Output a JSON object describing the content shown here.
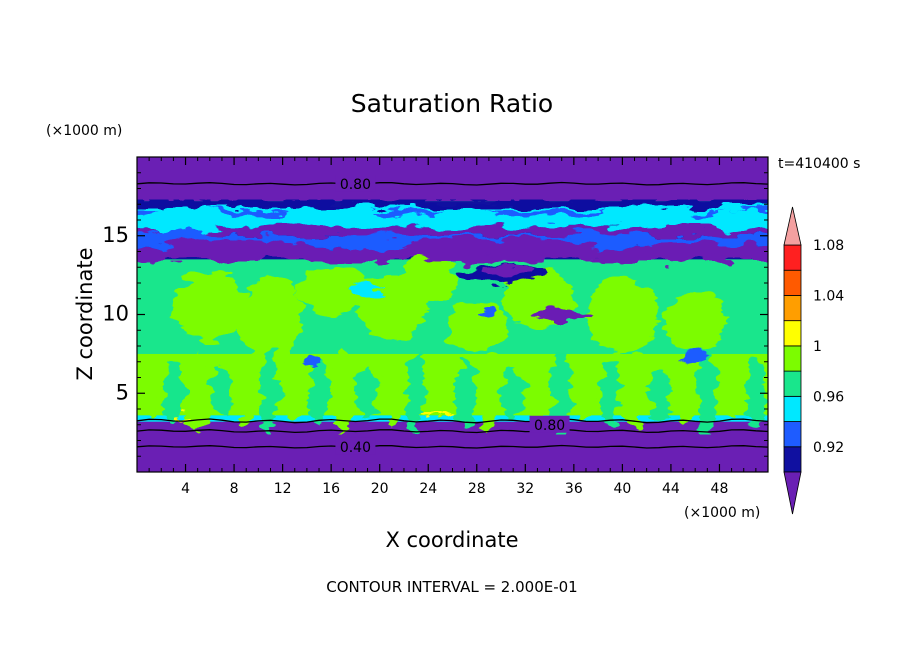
{
  "chart_data": {
    "type": "heatmap",
    "title": "Saturation Ratio",
    "xlabel": "X coordinate",
    "ylabel": "Z coordinate",
    "x_unit": "(×1000 m)",
    "y_unit": "(×1000 m)",
    "time_label": "t=410400 s",
    "footer": "CONTOUR INTERVAL = 2.000E-01",
    "xlim": [
      0,
      52
    ],
    "ylim": [
      0,
      20
    ],
    "x_ticks": [
      "4",
      "8",
      "12",
      "16",
      "20",
      "24",
      "28",
      "32",
      "36",
      "40",
      "44",
      "48"
    ],
    "y_ticks": [
      "5",
      "10",
      "15"
    ],
    "colorbar": {
      "levels": [
        "0.92",
        "0.96",
        "1",
        "1.04",
        "1.08"
      ],
      "colors": [
        "#6a1fb4",
        "#1010a0",
        "#1e5cff",
        "#00e8ff",
        "#19e68c",
        "#7cfc00",
        "#ffff00",
        "#ff9e00",
        "#ff5a00",
        "#ff2020",
        "#f4a0a0"
      ]
    },
    "contour_labels": [
      {
        "text": "0.80",
        "x": 18,
        "z": 18.3
      },
      {
        "text": "0.80",
        "x": 34,
        "z": 3.0
      },
      {
        "text": "0.40",
        "x": 18,
        "z": 1.6
      }
    ],
    "bands": [
      {
        "z": [
          0,
          3.2
        ],
        "value": "< 0.92"
      },
      {
        "z": [
          3.2,
          3.6
        ],
        "value": "0.96–1"
      },
      {
        "z": [
          3.6,
          7.5
        ],
        "value": "1–1.02 mixed with 0.98–1"
      },
      {
        "z": [
          7.5,
          13.5
        ],
        "value": "0.98–1 with 1–1.02 patches"
      },
      {
        "z": [
          13.5,
          17.2
        ],
        "value": "0.92–0.98 layered"
      },
      {
        "z": [
          17.2,
          20
        ],
        "value": "< 0.92"
      }
    ]
  }
}
